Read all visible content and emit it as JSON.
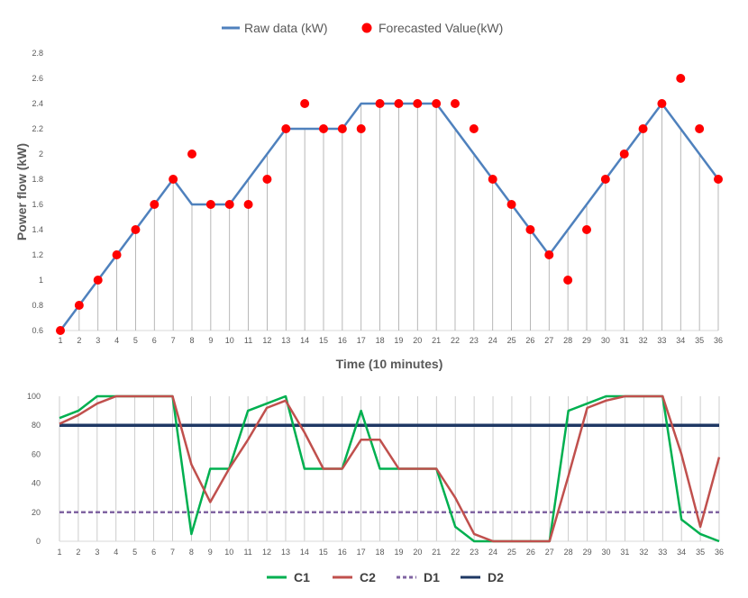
{
  "chart_data": [
    {
      "type": "line",
      "xlabel": "Time (10 minutes)",
      "ylabel": "Power flow (kW)",
      "ylim": [
        0.6,
        2.8
      ],
      "yticks": [
        "0.6",
        "0.8",
        "1",
        "1.2",
        "1.4",
        "1.6",
        "1.8",
        "2",
        "2.2",
        "2.4",
        "2.6",
        "2.8"
      ],
      "x": [
        1,
        2,
        3,
        4,
        5,
        6,
        7,
        8,
        9,
        10,
        11,
        12,
        13,
        14,
        15,
        16,
        17,
        18,
        19,
        20,
        21,
        22,
        23,
        24,
        25,
        26,
        27,
        28,
        29,
        30,
        31,
        32,
        33,
        34,
        35,
        36
      ],
      "legend_position": "top-center",
      "grid": "vertical drop lines",
      "series": [
        {
          "name": "Raw data (kW)",
          "kind": "line",
          "color": "#4F81BD",
          "values": [
            0.6,
            0.8,
            1.0,
            1.2,
            1.4,
            1.6,
            1.8,
            1.6,
            1.6,
            1.6,
            1.8,
            2.0,
            2.2,
            2.2,
            2.2,
            2.2,
            2.4,
            2.4,
            2.4,
            2.4,
            2.4,
            2.2,
            2.0,
            1.8,
            1.6,
            1.4,
            1.2,
            1.4,
            1.6,
            1.8,
            2.0,
            2.2,
            2.4,
            2.2,
            2.0,
            1.8
          ]
        },
        {
          "name": "Forecasted Value(kW)",
          "kind": "scatter",
          "color": "#FF0000",
          "values": [
            0.6,
            0.8,
            1.0,
            1.2,
            1.4,
            1.6,
            1.8,
            2.0,
            1.6,
            1.6,
            1.6,
            1.8,
            2.2,
            2.4,
            2.2,
            2.2,
            2.2,
            2.4,
            2.4,
            2.4,
            2.4,
            2.4,
            2.2,
            1.8,
            1.6,
            1.4,
            1.2,
            1.0,
            1.4,
            1.8,
            2.0,
            2.2,
            2.4,
            2.6,
            2.2,
            1.8
          ]
        }
      ]
    },
    {
      "type": "line",
      "xlabel": "",
      "ylabel": "",
      "ylim": [
        0,
        100
      ],
      "yticks": [
        "0",
        "20",
        "40",
        "60",
        "80",
        "100"
      ],
      "x": [
        1,
        2,
        3,
        4,
        5,
        6,
        7,
        8,
        9,
        10,
        11,
        12,
        13,
        14,
        15,
        16,
        17,
        18,
        19,
        20,
        21,
        22,
        23,
        24,
        25,
        26,
        27,
        28,
        29,
        30,
        31,
        32,
        33,
        34,
        35,
        36
      ],
      "legend_position": "bottom-center",
      "grid": "vertical lines",
      "series": [
        {
          "name": "C1",
          "color": "#00B050",
          "dash": "solid",
          "values": [
            85,
            90,
            100,
            100,
            100,
            100,
            100,
            5,
            50,
            50,
            90,
            95,
            100,
            50,
            50,
            50,
            90,
            50,
            50,
            50,
            50,
            10,
            0,
            0,
            0,
            0,
            0,
            90,
            95,
            100,
            100,
            100,
            100,
            15,
            5,
            0
          ]
        },
        {
          "name": "C2",
          "color": "#C0504D",
          "dash": "solid",
          "values": [
            81,
            87,
            95,
            100,
            100,
            100,
            100,
            53,
            27,
            50,
            70,
            92,
            97,
            75,
            50,
            50,
            70,
            70,
            50,
            50,
            50,
            30,
            5,
            0,
            0,
            0,
            0,
            45,
            92,
            97,
            100,
            100,
            100,
            60,
            10,
            58
          ]
        },
        {
          "name": "D1",
          "color": "#8064A2",
          "dash": "dashed",
          "values": [
            20,
            20,
            20,
            20,
            20,
            20,
            20,
            20,
            20,
            20,
            20,
            20,
            20,
            20,
            20,
            20,
            20,
            20,
            20,
            20,
            20,
            20,
            20,
            20,
            20,
            20,
            20,
            20,
            20,
            20,
            20,
            20,
            20,
            20,
            20,
            20
          ]
        },
        {
          "name": "D2",
          "color": "#1F3864",
          "dash": "solid",
          "values": [
            80,
            80,
            80,
            80,
            80,
            80,
            80,
            80,
            80,
            80,
            80,
            80,
            80,
            80,
            80,
            80,
            80,
            80,
            80,
            80,
            80,
            80,
            80,
            80,
            80,
            80,
            80,
            80,
            80,
            80,
            80,
            80,
            80,
            80,
            80,
            80
          ]
        }
      ]
    }
  ]
}
